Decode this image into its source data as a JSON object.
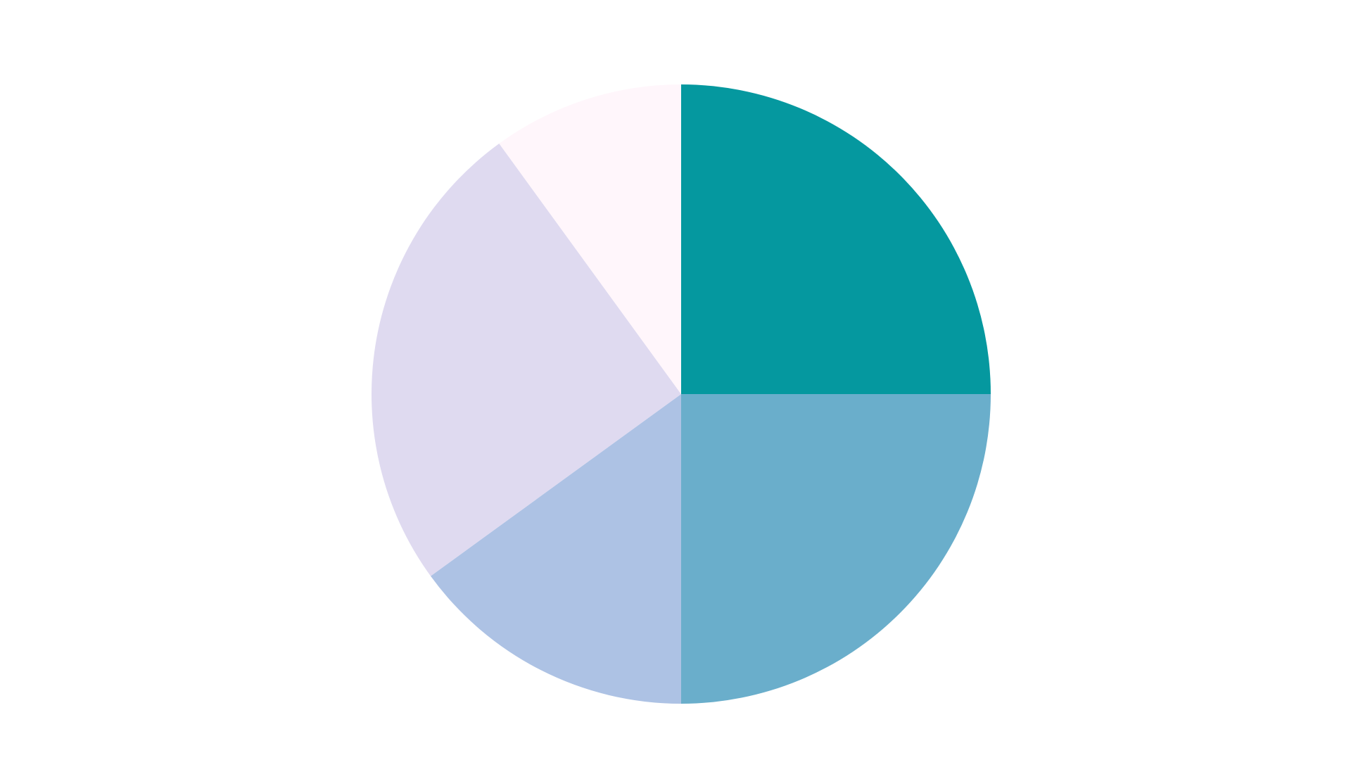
{
  "chart_data": {
    "type": "pie",
    "start": "top",
    "direction": "clockwise",
    "categories": [
      "",
      "",
      "",
      "",
      ""
    ],
    "values": [
      25,
      25,
      15,
      25,
      10
    ],
    "colors": [
      "#05989f",
      "#6aaecb",
      "#adc2e4",
      "#dfdaf0",
      "#fff6fb"
    ],
    "legend": "none",
    "title": ""
  }
}
